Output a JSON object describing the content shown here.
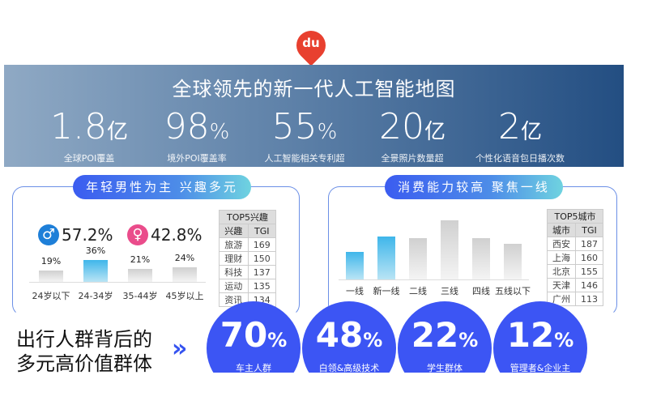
{
  "logo": {
    "text": "du",
    "color": "#e8402f"
  },
  "banner": {
    "title": "全球领先的新一代人工智能地图",
    "stats": [
      {
        "num": "1.8",
        "unit": "亿",
        "label": "全球POI覆盖"
      },
      {
        "num": "98",
        "unit": "%",
        "label": "境外POI覆盖率"
      },
      {
        "num": "55",
        "unit": "%",
        "label": "人工智能相关专利超"
      },
      {
        "num": "20",
        "unit": "亿",
        "label": "全景照片数量超"
      },
      {
        "num": "2",
        "unit": "亿",
        "label": "个性化语音包日播次数"
      }
    ]
  },
  "left": {
    "title": "年轻男性为主 兴趣多元",
    "male": {
      "icon": "male-icon",
      "value": "57.2%",
      "color": "#1e7fd8"
    },
    "female": {
      "icon": "female-icon",
      "value": "42.8%",
      "color": "#ea4c8b"
    },
    "table": {
      "title": "TOP5兴趣",
      "headers": [
        "兴趣",
        "TGI"
      ],
      "rows": [
        [
          "旅游",
          "169"
        ],
        [
          "理财",
          "150"
        ],
        [
          "科技",
          "137"
        ],
        [
          "运动",
          "135"
        ],
        [
          "资讯",
          "134"
        ]
      ]
    }
  },
  "right": {
    "title": "消费能力较高 聚焦一线",
    "table": {
      "title": "TOP5城市",
      "headers": [
        "城市",
        "TGI"
      ],
      "rows": [
        [
          "西安",
          "187"
        ],
        [
          "上海",
          "160"
        ],
        [
          "北京",
          "155"
        ],
        [
          "天津",
          "146"
        ],
        [
          "广州",
          "113"
        ]
      ]
    }
  },
  "chart_data": [
    {
      "type": "bar",
      "categories": [
        "24岁以下",
        "24-34岁",
        "35-44岁",
        "45岁以上"
      ],
      "values": [
        19,
        36,
        21,
        24
      ],
      "labels": [
        "19%",
        "36%",
        "21%",
        "24%"
      ],
      "highlight": [
        1
      ]
    },
    {
      "type": "bar",
      "categories": [
        "一线",
        "新一线",
        "二线",
        "三线",
        "四线",
        "五线以下"
      ],
      "values": [
        34,
        53,
        51,
        73,
        51,
        44
      ],
      "highlight": [
        0,
        1
      ]
    }
  ],
  "bottom": {
    "title_lines": [
      "出行人群背后的",
      "多元高价值群体"
    ],
    "groups": [
      {
        "num": "70",
        "unit": "%",
        "label": "车主人群"
      },
      {
        "num": "48",
        "unit": "%",
        "label": "白领&高级技术"
      },
      {
        "num": "22",
        "unit": "%",
        "label": "学生群体"
      },
      {
        "num": "12",
        "unit": "%",
        "label": "管理者&企业主"
      }
    ]
  }
}
